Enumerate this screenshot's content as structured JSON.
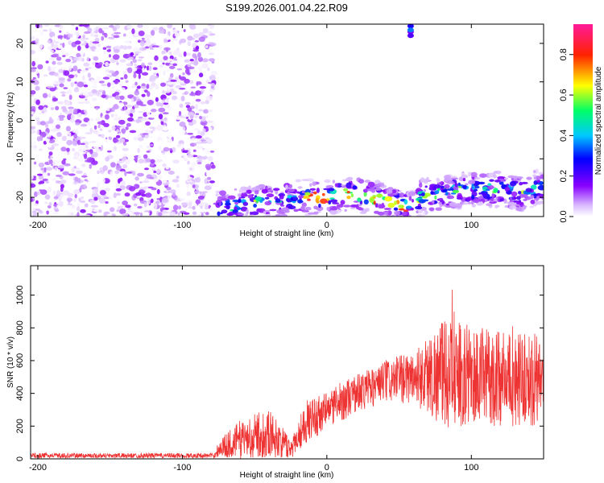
{
  "title": "S199.2026.001.04.22.R09",
  "chart_data": [
    {
      "type": "heatmap",
      "xlabel": "Height of straight line (km)",
      "ylabel": "Frequency (Hz)",
      "xlim": [
        -205,
        150
      ],
      "ylim": [
        -25,
        25
      ],
      "xticks": [
        "-200",
        "-100",
        "0",
        "100"
      ],
      "xtick_values": [
        -200,
        -100,
        0,
        100
      ],
      "yticks": [
        "20",
        "10",
        "0",
        "-10",
        "-20"
      ],
      "ytick_values": [
        20,
        10,
        0,
        -10,
        -20
      ],
      "noise_region_x": [
        -205,
        -78
      ],
      "signal_track": [
        {
          "x": -78,
          "y": -23
        },
        {
          "x": -60,
          "y": -22
        },
        {
          "x": -40,
          "y": -21
        },
        {
          "x": -20,
          "y": -20
        },
        {
          "x": 0,
          "y": -20
        },
        {
          "x": 15,
          "y": -19
        },
        {
          "x": 30,
          "y": -20
        },
        {
          "x": 45,
          "y": -21
        },
        {
          "x": 58,
          "y": -23
        },
        {
          "x": 65,
          "y": -20
        },
        {
          "x": 80,
          "y": -19
        },
        {
          "x": 100,
          "y": -18
        },
        {
          "x": 120,
          "y": -18
        },
        {
          "x": 135,
          "y": -19
        },
        {
          "x": 150,
          "y": -17
        }
      ],
      "isolated_blob": {
        "x": 58,
        "y": 23
      },
      "colorbar": {
        "label": "Normalized spectral amplitude",
        "ticks": [
          "0.0",
          "0.2",
          "0.4",
          "0.6",
          "0.8"
        ],
        "tick_values": [
          0.0,
          0.2,
          0.4,
          0.6,
          0.8
        ],
        "range": [
          0,
          0.95
        ],
        "colors": [
          "#ffffff",
          "#d8b8ff",
          "#8800ff",
          "#0000ff",
          "#00c8ff",
          "#00ff66",
          "#ffff00",
          "#ff2200",
          "#ff1a9a"
        ]
      }
    },
    {
      "type": "line",
      "xlabel": "Height of straight line (km)",
      "ylabel": "SNR (10 * v/v)",
      "xlim": [
        -205,
        150
      ],
      "ylim": [
        0,
        1180
      ],
      "xticks": [
        "-200",
        "-100",
        "0",
        "100"
      ],
      "xtick_values": [
        -200,
        -100,
        0,
        100
      ],
      "yticks": [
        "0",
        "200",
        "400",
        "600",
        "800",
        "1000"
      ],
      "ytick_values": [
        0,
        200,
        400,
        600,
        800,
        1000
      ],
      "series_color": "#ee3333",
      "envelope": [
        {
          "x": -205,
          "mean": 20,
          "spread": 15
        },
        {
          "x": -78,
          "mean": 20,
          "spread": 15
        },
        {
          "x": -75,
          "mean": 60,
          "spread": 50
        },
        {
          "x": -60,
          "mean": 120,
          "spread": 120
        },
        {
          "x": -40,
          "mean": 160,
          "spread": 150
        },
        {
          "x": -25,
          "mean": 60,
          "spread": 60
        },
        {
          "x": -15,
          "mean": 220,
          "spread": 130
        },
        {
          "x": 0,
          "mean": 300,
          "spread": 120
        },
        {
          "x": 20,
          "mean": 400,
          "spread": 120
        },
        {
          "x": 40,
          "mean": 470,
          "spread": 130
        },
        {
          "x": 60,
          "mean": 500,
          "spread": 160
        },
        {
          "x": 80,
          "mean": 520,
          "spread": 330
        },
        {
          "x": 110,
          "mean": 500,
          "spread": 300
        },
        {
          "x": 150,
          "mean": 480,
          "spread": 280
        }
      ]
    }
  ]
}
